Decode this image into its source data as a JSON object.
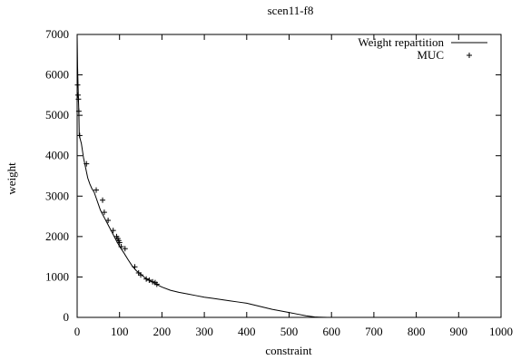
{
  "chart_data": {
    "type": "line",
    "title": "scen11-f8",
    "xlabel": "constraint",
    "ylabel": "weight",
    "xlim": [
      0,
      1000
    ],
    "ylim": [
      0,
      7000
    ],
    "xticks": [
      0,
      100,
      200,
      300,
      400,
      500,
      600,
      700,
      800,
      900,
      1000
    ],
    "yticks": [
      0,
      1000,
      2000,
      3000,
      4000,
      5000,
      6000,
      7000
    ],
    "grid": false,
    "legend_position": "top-right",
    "series": [
      {
        "name": "Weight repartition",
        "style": "line",
        "x": [
          0,
          1,
          2,
          3,
          4,
          5,
          7,
          10,
          15,
          20,
          25,
          30,
          35,
          40,
          45,
          50,
          55,
          60,
          65,
          70,
          75,
          80,
          85,
          90,
          95,
          100,
          110,
          120,
          130,
          140,
          150,
          160,
          170,
          180,
          190,
          200,
          220,
          240,
          260,
          280,
          300,
          320,
          340,
          360,
          380,
          400,
          420,
          440,
          460,
          480,
          500,
          520,
          540,
          560,
          570,
          580,
          590
        ],
        "y": [
          7000,
          6200,
          5800,
          5400,
          5100,
          4500,
          4420,
          4300,
          3950,
          3700,
          3450,
          3300,
          3180,
          3100,
          2950,
          2800,
          2650,
          2550,
          2450,
          2350,
          2250,
          2150,
          2050,
          1950,
          1850,
          1760,
          1600,
          1430,
          1270,
          1150,
          1070,
          980,
          920,
          860,
          800,
          750,
          670,
          620,
          580,
          540,
          500,
          470,
          440,
          410,
          380,
          350,
          300,
          250,
          200,
          160,
          120,
          80,
          40,
          10,
          5,
          2,
          0
        ]
      },
      {
        "name": "MUC",
        "style": "points",
        "x": [
          1,
          2,
          3,
          4,
          6,
          22,
          45,
          60,
          64,
          73,
          85,
          93,
          96,
          98,
          100,
          104,
          113,
          136,
          145,
          150,
          163,
          170,
          178,
          184,
          188
        ],
        "y": [
          5750,
          5500,
          5400,
          5100,
          4500,
          3800,
          3150,
          2900,
          2600,
          2400,
          2150,
          2000,
          1950,
          1900,
          1850,
          1750,
          1700,
          1250,
          1100,
          1050,
          950,
          920,
          880,
          860,
          820
        ]
      }
    ]
  }
}
